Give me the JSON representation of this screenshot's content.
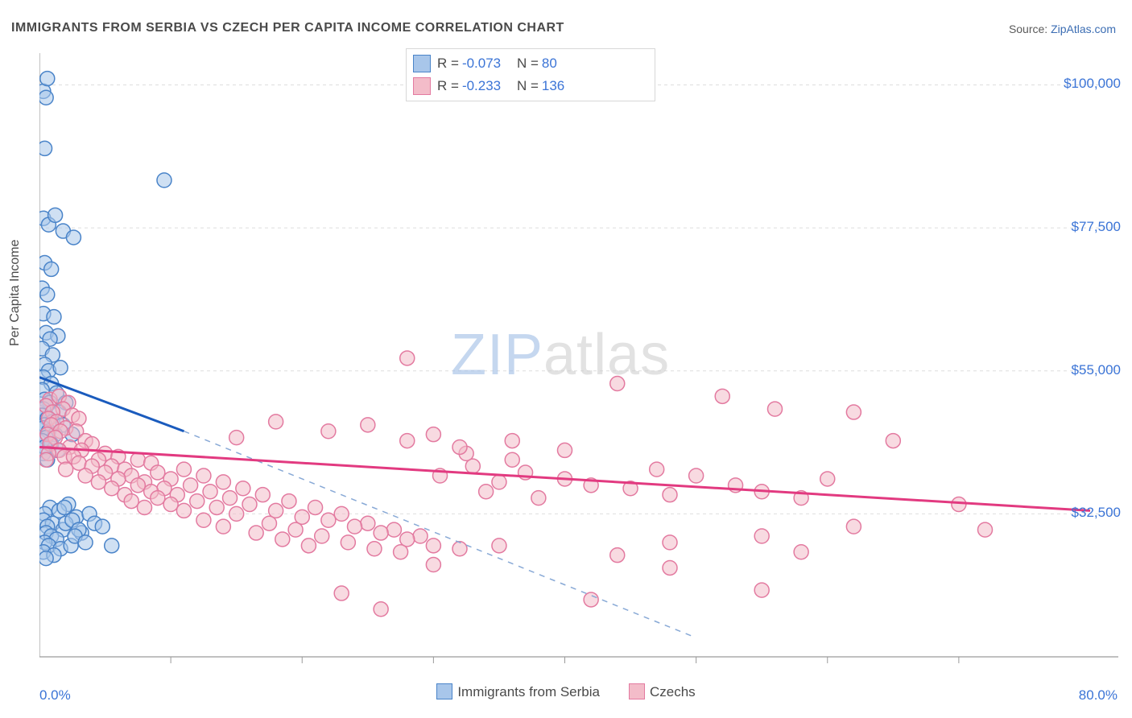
{
  "title": "IMMIGRANTS FROM SERBIA VS CZECH PER CAPITA INCOME CORRELATION CHART",
  "source_label": "Source: ",
  "source_link": "ZipAtlas.com",
  "watermark": {
    "left": "ZIP",
    "right": "atlas"
  },
  "chart": {
    "type": "scatter",
    "xlabel": "",
    "ylabel": "Per Capita Income",
    "xlim": [
      0,
      80
    ],
    "ylim": [
      10000,
      105000
    ],
    "x_tick_left": "0.0%",
    "x_tick_right": "80.0%",
    "x_minor_ticks": [
      10,
      20,
      30,
      40,
      50,
      60,
      70
    ],
    "y_ticks": [
      {
        "v": 32500,
        "label": "$32,500"
      },
      {
        "v": 55000,
        "label": "$55,000"
      },
      {
        "v": 77500,
        "label": "$77,500"
      },
      {
        "v": 100000,
        "label": "$100,000"
      }
    ],
    "grid_color": "#dedede",
    "background_color": "#ffffff",
    "axis_color": "#9a9a9a",
    "marker_radius": 9,
    "marker_stroke_width": 1.5,
    "series": [
      {
        "name": "Immigrants from Serbia",
        "fill": "#a8c6ea",
        "fill_opacity": 0.55,
        "stroke": "#4a84c9",
        "trend_color": "#1a5bbd",
        "trend_width": 3,
        "dash_color": "#88a9d6",
        "R": "-0.073",
        "N": "80",
        "trend": {
          "x1": 0,
          "y1": 54000,
          "x2": 11,
          "y2": 45500
        },
        "dash": {
          "x1": 11,
          "y1": 45500,
          "x2": 50,
          "y2": 13000
        },
        "points": [
          [
            0.3,
            99000
          ],
          [
            0.5,
            98000
          ],
          [
            0.6,
            101000
          ],
          [
            0.4,
            90000
          ],
          [
            0.3,
            79000
          ],
          [
            0.7,
            78000
          ],
          [
            1.2,
            79500
          ],
          [
            1.8,
            77000
          ],
          [
            2.6,
            76000
          ],
          [
            0.4,
            72000
          ],
          [
            0.9,
            71000
          ],
          [
            0.2,
            68000
          ],
          [
            0.6,
            67000
          ],
          [
            0.3,
            64000
          ],
          [
            1.1,
            63500
          ],
          [
            0.5,
            61000
          ],
          [
            1.4,
            60500
          ],
          [
            0.8,
            60000
          ],
          [
            0.2,
            58500
          ],
          [
            1.0,
            57500
          ],
          [
            0.4,
            56000
          ],
          [
            0.7,
            55000
          ],
          [
            1.6,
            55500
          ],
          [
            0.3,
            54000
          ],
          [
            0.9,
            53000
          ],
          [
            0.2,
            52000
          ],
          [
            1.3,
            51500
          ],
          [
            0.4,
            50500
          ],
          [
            0.8,
            50000
          ],
          [
            0.5,
            49500
          ],
          [
            0.3,
            49000
          ],
          [
            2.0,
            50000
          ],
          [
            1.5,
            48500
          ],
          [
            0.2,
            48000
          ],
          [
            0.6,
            47500
          ],
          [
            1.0,
            47000
          ],
          [
            0.4,
            46500
          ],
          [
            1.8,
            46500
          ],
          [
            0.3,
            46000
          ],
          [
            0.7,
            45500
          ],
          [
            1.2,
            45000
          ],
          [
            0.5,
            44500
          ],
          [
            2.5,
            45000
          ],
          [
            0.2,
            44000
          ],
          [
            0.9,
            43500
          ],
          [
            0.4,
            43000
          ],
          [
            1.4,
            42500
          ],
          [
            0.3,
            42000
          ],
          [
            0.6,
            41000
          ],
          [
            9.5,
            85000
          ],
          [
            2.2,
            34000
          ],
          [
            0.8,
            33500
          ],
          [
            1.5,
            33000
          ],
          [
            0.4,
            32500
          ],
          [
            2.8,
            32000
          ],
          [
            0.3,
            31500
          ],
          [
            1.0,
            31000
          ],
          [
            0.6,
            30500
          ],
          [
            1.8,
            30000
          ],
          [
            0.5,
            29500
          ],
          [
            0.9,
            29000
          ],
          [
            1.3,
            28500
          ],
          [
            0.4,
            28000
          ],
          [
            2.0,
            31000
          ],
          [
            0.7,
            27500
          ],
          [
            1.6,
            27000
          ],
          [
            0.3,
            26500
          ],
          [
            1.1,
            26000
          ],
          [
            2.4,
            27500
          ],
          [
            0.5,
            25500
          ],
          [
            3.2,
            29500
          ],
          [
            5.5,
            27500
          ],
          [
            2.5,
            31500
          ],
          [
            3.8,
            32500
          ],
          [
            1.9,
            33500
          ],
          [
            3.0,
            30000
          ],
          [
            4.2,
            31000
          ],
          [
            2.7,
            29000
          ],
          [
            3.5,
            28000
          ],
          [
            4.8,
            30500
          ]
        ]
      },
      {
        "name": "Czechs",
        "fill": "#f3bcc9",
        "fill_opacity": 0.55,
        "stroke": "#e37aa0",
        "trend_color": "#e23a80",
        "trend_width": 3,
        "R": "-0.233",
        "N": "136",
        "trend": {
          "x1": 0,
          "y1": 43000,
          "x2": 80,
          "y2": 33000
        },
        "points": [
          [
            0.8,
            50500
          ],
          [
            1.5,
            51000
          ],
          [
            2.2,
            50000
          ],
          [
            0.5,
            49500
          ],
          [
            1.8,
            49000
          ],
          [
            1.0,
            48500
          ],
          [
            2.5,
            48000
          ],
          [
            0.7,
            47500
          ],
          [
            1.3,
            47000
          ],
          [
            3.0,
            47500
          ],
          [
            0.9,
            46500
          ],
          [
            2.0,
            46000
          ],
          [
            1.6,
            45500
          ],
          [
            0.6,
            45000
          ],
          [
            2.8,
            45500
          ],
          [
            1.2,
            44500
          ],
          [
            3.5,
            44000
          ],
          [
            0.8,
            43500
          ],
          [
            2.3,
            43000
          ],
          [
            4.0,
            43500
          ],
          [
            1.5,
            42500
          ],
          [
            0.7,
            42000
          ],
          [
            3.2,
            42500
          ],
          [
            5.0,
            42000
          ],
          [
            1.9,
            41500
          ],
          [
            0.5,
            41000
          ],
          [
            2.6,
            41500
          ],
          [
            4.5,
            41000
          ],
          [
            6.0,
            41500
          ],
          [
            3.0,
            40500
          ],
          [
            7.5,
            41000
          ],
          [
            5.5,
            40000
          ],
          [
            8.5,
            40500
          ],
          [
            2.0,
            39500
          ],
          [
            4.0,
            40000
          ],
          [
            6.5,
            39500
          ],
          [
            9.0,
            39000
          ],
          [
            11.0,
            39500
          ],
          [
            3.5,
            38500
          ],
          [
            5.0,
            39000
          ],
          [
            7.0,
            38500
          ],
          [
            10.0,
            38000
          ],
          [
            12.5,
            38500
          ],
          [
            4.5,
            37500
          ],
          [
            6.0,
            38000
          ],
          [
            8.0,
            37500
          ],
          [
            11.5,
            37000
          ],
          [
            14.0,
            37500
          ],
          [
            5.5,
            36500
          ],
          [
            7.5,
            37000
          ],
          [
            9.5,
            36500
          ],
          [
            13.0,
            36000
          ],
          [
            15.5,
            36500
          ],
          [
            6.5,
            35500
          ],
          [
            8.5,
            36000
          ],
          [
            10.5,
            35500
          ],
          [
            14.5,
            35000
          ],
          [
            17.0,
            35500
          ],
          [
            7.0,
            34500
          ],
          [
            9.0,
            35000
          ],
          [
            12.0,
            34500
          ],
          [
            16.0,
            34000
          ],
          [
            19.0,
            34500
          ],
          [
            8.0,
            33500
          ],
          [
            10.0,
            34000
          ],
          [
            13.5,
            33500
          ],
          [
            18.0,
            33000
          ],
          [
            21.0,
            33500
          ],
          [
            11.0,
            33000
          ],
          [
            15.0,
            32500
          ],
          [
            20.0,
            32000
          ],
          [
            23.0,
            32500
          ],
          [
            12.5,
            31500
          ],
          [
            17.5,
            31000
          ],
          [
            22.0,
            31500
          ],
          [
            25.0,
            31000
          ],
          [
            14.0,
            30500
          ],
          [
            19.5,
            30000
          ],
          [
            24.0,
            30500
          ],
          [
            27.0,
            30000
          ],
          [
            16.5,
            29500
          ],
          [
            21.5,
            29000
          ],
          [
            26.0,
            29500
          ],
          [
            29.0,
            29000
          ],
          [
            18.5,
            28500
          ],
          [
            23.5,
            28000
          ],
          [
            28.0,
            28500
          ],
          [
            20.5,
            27500
          ],
          [
            25.5,
            27000
          ],
          [
            30.0,
            27500
          ],
          [
            27.5,
            26500
          ],
          [
            32.0,
            27000
          ],
          [
            30.5,
            38500
          ],
          [
            33.0,
            40000
          ],
          [
            35.0,
            37500
          ],
          [
            37.0,
            39000
          ],
          [
            28.0,
            57000
          ],
          [
            30.0,
            45000
          ],
          [
            32.5,
            42000
          ],
          [
            34.0,
            36000
          ],
          [
            36.0,
            44000
          ],
          [
            38.0,
            35000
          ],
          [
            40.0,
            38000
          ],
          [
            42.0,
            37000
          ],
          [
            44.0,
            53000
          ],
          [
            45.0,
            36500
          ],
          [
            47.0,
            39500
          ],
          [
            48.0,
            35500
          ],
          [
            50.0,
            38500
          ],
          [
            52.0,
            51000
          ],
          [
            53.0,
            37000
          ],
          [
            55.0,
            36000
          ],
          [
            56.0,
            49000
          ],
          [
            58.0,
            35000
          ],
          [
            60.0,
            38000
          ],
          [
            62.0,
            48500
          ],
          [
            65.0,
            44000
          ],
          [
            70.0,
            34000
          ],
          [
            72.0,
            30000
          ],
          [
            44.0,
            26000
          ],
          [
            35.0,
            27500
          ],
          [
            48.0,
            28000
          ],
          [
            55.0,
            29000
          ],
          [
            58.0,
            26500
          ],
          [
            62.0,
            30500
          ],
          [
            42.0,
            19000
          ],
          [
            48.0,
            24000
          ],
          [
            55.0,
            20500
          ],
          [
            23.0,
            20000
          ],
          [
            26.0,
            17500
          ],
          [
            30.0,
            24500
          ],
          [
            15.0,
            44500
          ],
          [
            18.0,
            47000
          ],
          [
            22.0,
            45500
          ],
          [
            25.0,
            46500
          ],
          [
            28.0,
            44000
          ],
          [
            32.0,
            43000
          ],
          [
            36.0,
            41000
          ],
          [
            40.0,
            42500
          ]
        ]
      }
    ],
    "legend_bottom": [
      {
        "label": "Immigrants from Serbia",
        "fill": "#a8c6ea",
        "stroke": "#4a84c9"
      },
      {
        "label": "Czechs",
        "fill": "#f3bcc9",
        "stroke": "#e37aa0"
      }
    ]
  }
}
